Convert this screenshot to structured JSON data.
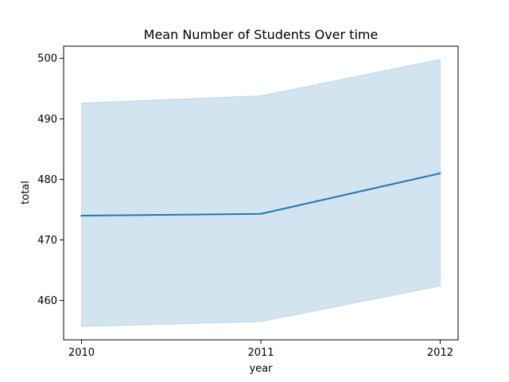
{
  "chart_data": {
    "type": "line",
    "title": "Mean Number of Students Over time",
    "xlabel": "year",
    "ylabel": "total",
    "categories": [
      "2010",
      "2011",
      "2012"
    ],
    "series": [
      {
        "values": [
          474.0,
          474.3,
          481.0
        ],
        "ci_lower": [
          455.7,
          456.5,
          462.4
        ],
        "ci_upper": [
          492.6,
          493.8,
          499.8
        ],
        "color": "#1f77b4",
        "band_color": "#1f77b4"
      }
    ],
    "yticks": [
      460,
      470,
      480,
      490,
      500
    ],
    "xlim": [
      2009.9,
      2012.1
    ],
    "ylim": [
      453.5,
      502.0
    ],
    "grid": false
  }
}
